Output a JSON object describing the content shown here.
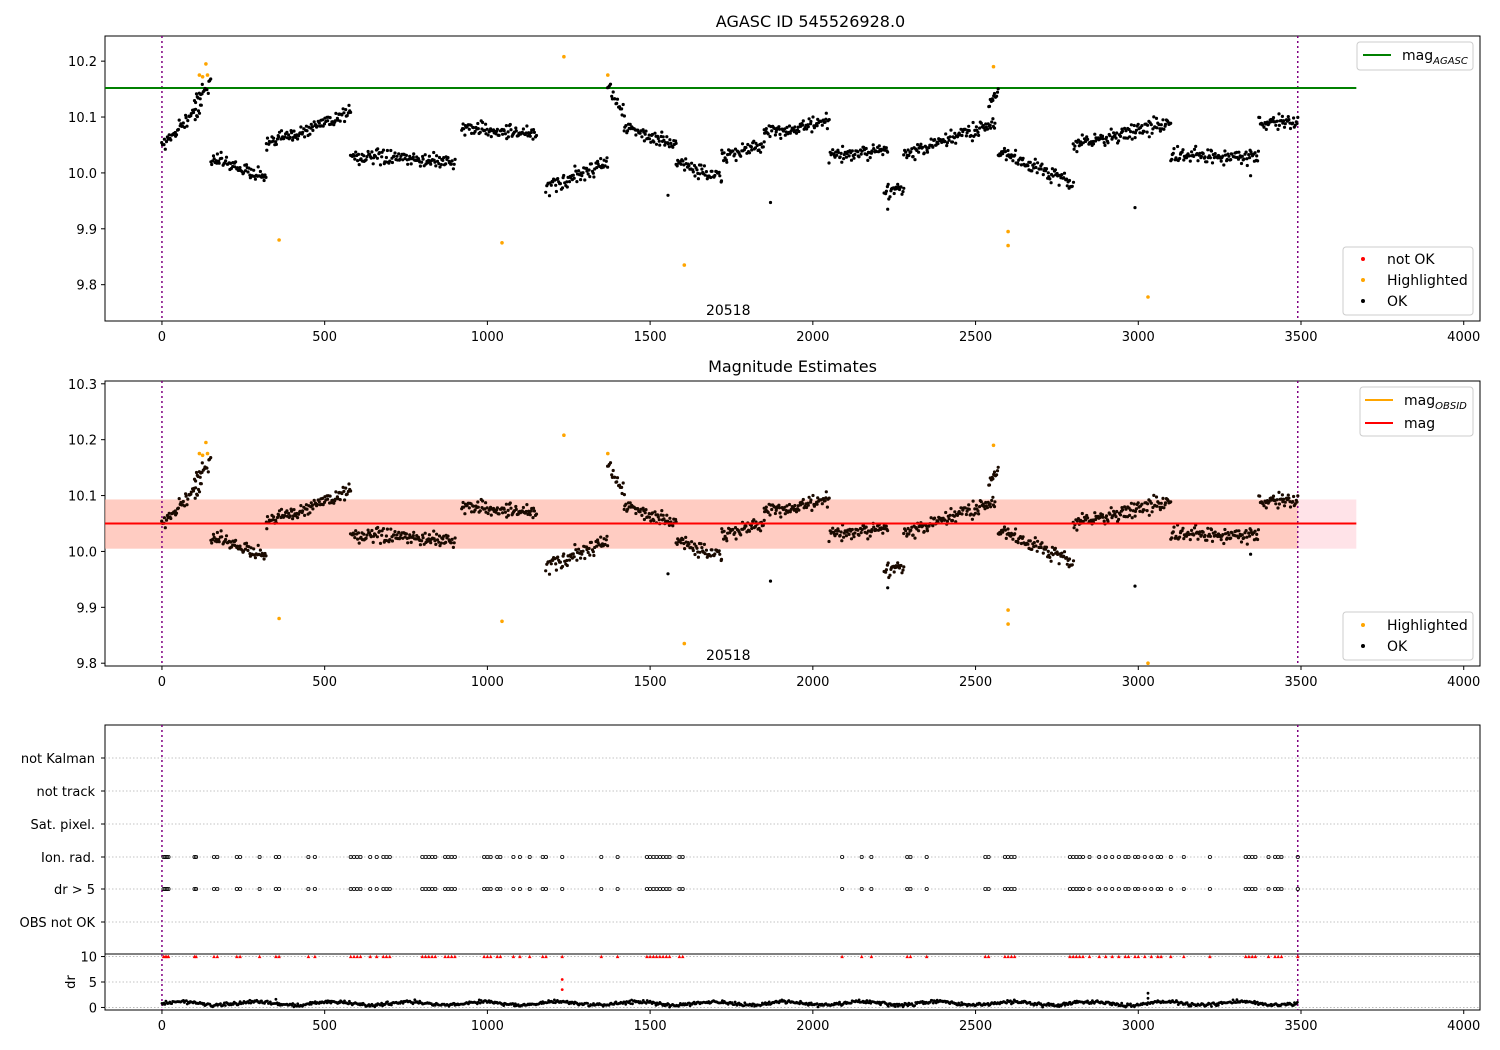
{
  "chart_data": [
    {
      "type": "scatter",
      "title": "AGASC ID 545526928.0",
      "xlabel": "",
      "ylabel": "",
      "xlim": [
        -175,
        4050
      ],
      "ylim": [
        9.735,
        10.245
      ],
      "xticks": [
        0,
        500,
        1000,
        1500,
        2000,
        2500,
        3000,
        3500,
        4000
      ],
      "yticks": [
        9.8,
        9.9,
        10.0,
        10.1,
        10.2
      ],
      "obs_boundaries": [
        0,
        3490
      ],
      "obsid_label": {
        "text": "20518",
        "x": 1740,
        "y": 9.755
      },
      "reference_line": {
        "name": "mag",
        "name_sub": "AGASC",
        "value": 10.152,
        "x_range": [
          -175,
          3670
        ],
        "color": "#008000"
      },
      "legend_top": {
        "placement": "top-right",
        "entries": [
          {
            "label": "mag",
            "sub": "AGASC",
            "color": "#008000"
          }
        ]
      },
      "legend_bottom": {
        "placement": "lower-right",
        "entries": [
          {
            "label": "not OK",
            "color": "#ff0000"
          },
          {
            "label": "Highlighted",
            "color": "#ffa500"
          },
          {
            "label": "OK",
            "color": "#000000"
          }
        ]
      },
      "highlighted_points": {
        "x": [
          115,
          125,
          135,
          140,
          360,
          1045,
          1235,
          1370,
          1605,
          2555,
          2600,
          2600,
          3030
        ],
        "y": [
          10.175,
          10.172,
          10.195,
          10.175,
          9.88,
          9.875,
          10.208,
          10.175,
          9.835,
          10.19,
          9.895,
          9.87,
          9.778
        ]
      },
      "ok_series_segments": [
        {
          "x": [
            0,
            120
          ],
          "y": [
            10.05,
            10.12
          ],
          "spread": 0.02
        },
        {
          "x": [
            100,
            150
          ],
          "y": [
            10.13,
            10.16
          ],
          "spread": 0.02
        },
        {
          "x": [
            150,
            320
          ],
          "y": [
            10.03,
            9.99
          ],
          "spread": 0.018
        },
        {
          "x": [
            320,
            580
          ],
          "y": [
            10.05,
            10.11
          ],
          "spread": 0.02
        },
        {
          "x": [
            580,
            900
          ],
          "y": [
            10.03,
            10.02
          ],
          "spread": 0.018
        },
        {
          "x": [
            920,
            1150
          ],
          "y": [
            10.08,
            10.07
          ],
          "spread": 0.02
        },
        {
          "x": [
            1180,
            1370
          ],
          "y": [
            9.97,
            10.02
          ],
          "spread": 0.02
        },
        {
          "x": [
            1370,
            1420
          ],
          "y": [
            10.15,
            10.11
          ],
          "spread": 0.02
        },
        {
          "x": [
            1420,
            1580
          ],
          "y": [
            10.08,
            10.05
          ],
          "spread": 0.018
        },
        {
          "x": [
            1580,
            1720
          ],
          "y": [
            10.02,
            9.99
          ],
          "spread": 0.02
        },
        {
          "x": [
            1720,
            1850
          ],
          "y": [
            10.03,
            10.05
          ],
          "spread": 0.018
        },
        {
          "x": [
            1850,
            2050
          ],
          "y": [
            10.07,
            10.09
          ],
          "spread": 0.02
        },
        {
          "x": [
            2050,
            2230
          ],
          "y": [
            10.03,
            10.04
          ],
          "spread": 0.02
        },
        {
          "x": [
            2220,
            2280
          ],
          "y": [
            9.97,
            9.97
          ],
          "spread": 0.02
        },
        {
          "x": [
            2280,
            2560
          ],
          "y": [
            10.03,
            10.09
          ],
          "spread": 0.02
        },
        {
          "x": [
            2540,
            2570
          ],
          "y": [
            10.12,
            10.15
          ],
          "spread": 0.02
        },
        {
          "x": [
            2570,
            2800
          ],
          "y": [
            10.04,
            9.98
          ],
          "spread": 0.02
        },
        {
          "x": [
            2800,
            3100
          ],
          "y": [
            10.05,
            10.09
          ],
          "spread": 0.02
        },
        {
          "x": [
            3100,
            3370
          ],
          "y": [
            10.03,
            10.03
          ],
          "spread": 0.02
        },
        {
          "x": [
            3370,
            3490
          ],
          "y": [
            10.09,
            10.09
          ],
          "spread": 0.02
        }
      ],
      "ok_outliers": {
        "x": [
          1870,
          2990,
          1555,
          2230,
          3345
        ],
        "y": [
          9.947,
          9.938,
          9.96,
          9.935,
          9.995
        ]
      }
    },
    {
      "type": "scatter",
      "title": "Magnitude Estimates",
      "xlabel": "",
      "ylabel": "",
      "xlim": [
        -175,
        4050
      ],
      "ylim": [
        9.795,
        10.305
      ],
      "xticks": [
        0,
        500,
        1000,
        1500,
        2000,
        2500,
        3000,
        3500,
        4000
      ],
      "yticks": [
        9.8,
        9.9,
        10.0,
        10.1,
        10.2,
        10.3
      ],
      "obs_boundaries": [
        0,
        3490
      ],
      "obsid_label": {
        "text": "20518",
        "x": 1740,
        "y": 9.815
      },
      "band_pink": {
        "x_range": [
          -175,
          3670
        ],
        "y_range": [
          10.005,
          10.093
        ],
        "color": "#ffc0cb"
      },
      "band_orange": {
        "x_range": [
          -175,
          3490
        ],
        "y_range": [
          10.005,
          10.093
        ],
        "color": "#ffa07a"
      },
      "lines": [
        {
          "name": "mag",
          "sub": "",
          "value": 10.05,
          "x_range": [
            -175,
            3670
          ],
          "color": "#ff0000"
        }
      ],
      "legend_top": {
        "placement": "top-right",
        "entries": [
          {
            "label": "mag",
            "sub": "OBSID",
            "color": "#ffa500"
          },
          {
            "label": "mag",
            "sub": "",
            "color": "#ff0000"
          }
        ]
      },
      "legend_bottom": {
        "placement": "lower-right",
        "entries": [
          {
            "label": "Highlighted",
            "color": "#ffa500"
          },
          {
            "label": "OK",
            "color": "#000000"
          }
        ]
      },
      "highlighted_points": {
        "x": [
          115,
          125,
          135,
          140,
          360,
          1045,
          1235,
          1370,
          1605,
          2555,
          2600,
          2600,
          3030
        ],
        "y": [
          10.175,
          10.172,
          10.195,
          10.175,
          9.88,
          9.875,
          10.208,
          10.175,
          9.835,
          10.19,
          9.895,
          9.87,
          9.8
        ]
      }
    },
    {
      "type": "scatter",
      "title": "",
      "xlim": [
        -175,
        4050
      ],
      "ylim": [
        -0.5,
        10.5
      ],
      "yticks": [
        0,
        5,
        10
      ],
      "ylabel": "dr",
      "xticks": [
        0,
        500,
        1000,
        1500,
        2000,
        2500,
        3000,
        3500,
        4000
      ],
      "flag_rows": [
        "not Kalman",
        "not track",
        "Sat. pixel.",
        "Ion. rad.",
        "dr > 5",
        "OBS not OK"
      ],
      "flag_times": [
        5,
        10,
        15,
        20,
        100,
        105,
        160,
        170,
        230,
        240,
        300,
        350,
        360,
        450,
        470,
        580,
        590,
        600,
        610,
        640,
        660,
        680,
        690,
        700,
        800,
        810,
        820,
        830,
        840,
        870,
        880,
        890,
        900,
        990,
        1000,
        1010,
        1030,
        1040,
        1080,
        1100,
        1130,
        1170,
        1180,
        1230,
        1350,
        1400,
        1490,
        1500,
        1510,
        1520,
        1530,
        1540,
        1550,
        1560,
        1590,
        1600,
        2090,
        2150,
        2180,
        2290,
        2300,
        2350,
        2530,
        2540,
        2590,
        2600,
        2610,
        2620,
        2790,
        2800,
        2810,
        2820,
        2830,
        2850,
        2880,
        2900,
        2920,
        2940,
        2960,
        2970,
        2990,
        3000,
        3020,
        3040,
        3060,
        3070,
        3100,
        3140,
        3220,
        3330,
        3340,
        3350,
        3360,
        3400,
        3420,
        3430,
        3440,
        3490
      ],
      "dr_series": {
        "baseline": 0.8,
        "spread": 0.5
      },
      "dr_extra": {
        "x": [
          1230,
          1230,
          3030,
          3030,
          350
        ],
        "y": [
          5.5,
          3.5,
          2.8,
          1.8,
          1.6
        ]
      }
    }
  ]
}
